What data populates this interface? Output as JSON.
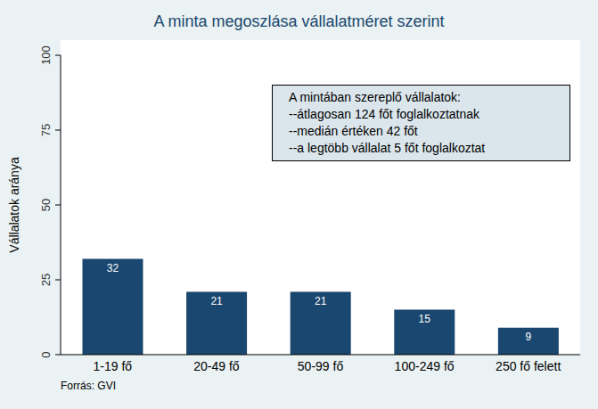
{
  "chart_data": {
    "type": "bar",
    "title": "A minta megoszlása vállalatméret szerint",
    "y_label": "Vállalatok aránya",
    "categories": [
      "1-19 fő",
      "20-49 fő",
      "50-99 fő",
      "100-249 fő",
      "250 fő felett"
    ],
    "values": [
      32,
      21,
      21,
      15,
      9
    ],
    "color": "#1a476f",
    "ylim": [
      0,
      100
    ],
    "yticks": [
      0,
      25,
      50,
      75,
      100
    ],
    "grid": false,
    "data_labels": true,
    "annotations": [
      "A mintában szereplő vállalatok:",
      "--átlagosan 124 főt foglalkoztatnak",
      "--medián értéken 42 főt",
      "--a legtöbb vállalat 5 főt foglalkoztat"
    ],
    "source": "Forrás: GVI"
  }
}
